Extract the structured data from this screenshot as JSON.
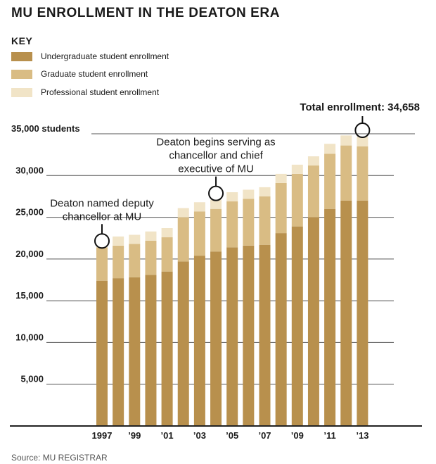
{
  "chart_data": {
    "type": "bar",
    "stacked": true,
    "title": "MU ENROLLMENT IN THE DEATON ERA",
    "key_title": "KEY",
    "categories": [
      "1997",
      "1998",
      "1999",
      "2000",
      "2001",
      "2002",
      "2003",
      "2004",
      "2005",
      "2006",
      "2007",
      "2008",
      "2009",
      "2010",
      "2011",
      "2012",
      "2013"
    ],
    "x_tick_labels": [
      "1997",
      "",
      "’99",
      "",
      "’01",
      "",
      "’03",
      "",
      "’05",
      "",
      "’07",
      "",
      "’09",
      "",
      "’11",
      "",
      "’13"
    ],
    "series": [
      {
        "name": "Undergraduate student enrollment",
        "color": "#b8904d",
        "values": [
          17400,
          17700,
          17800,
          18100,
          18500,
          19700,
          20400,
          20900,
          21400,
          21600,
          21700,
          23100,
          23900,
          25000,
          26000,
          27000,
          27000
        ]
      },
      {
        "name": "Graduate student enrollment",
        "color": "#d9bc84",
        "values": [
          4000,
          3900,
          4000,
          4100,
          4100,
          5300,
          5300,
          5100,
          5500,
          5600,
          5800,
          6000,
          6300,
          6200,
          6600,
          6600,
          6500
        ]
      },
      {
        "name": "Professional student enrollment",
        "color": "#f1e4c7",
        "values": [
          0,
          1100,
          1100,
          1100,
          1100,
          1100,
          1100,
          1100,
          1100,
          1100,
          1100,
          1100,
          1100,
          1100,
          1200,
          1200,
          1158
        ]
      }
    ],
    "ylim": [
      0,
      35000
    ],
    "yticks": [
      5000,
      10000,
      15000,
      20000,
      25000,
      30000,
      35000
    ],
    "ytick_labels": [
      "5,000",
      "10,000",
      "15,000",
      "20,000",
      "25,000",
      "30,000",
      "35,000 students"
    ],
    "annotations": [
      {
        "category_index": 0,
        "lines": [
          "Deaton named deputy",
          "chancellor at MU"
        ]
      },
      {
        "category_index": 7,
        "lines": [
          "Deaton begins serving as",
          "chancellor and chief",
          "executive of MU"
        ]
      },
      {
        "category_index": 16,
        "lines": [
          "Total enrollment: 34,658"
        ],
        "bold": true
      }
    ],
    "source": "Source: MU REGISTRAR"
  }
}
